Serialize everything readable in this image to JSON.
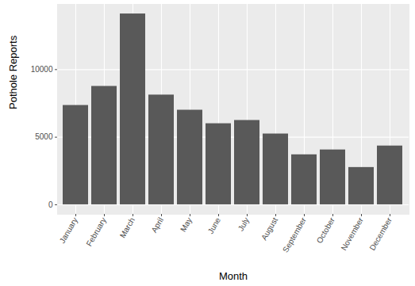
{
  "chart_data": {
    "type": "bar",
    "x_label": "Month",
    "y_label": "Pothole Reports",
    "categories": [
      "January",
      "February",
      "March",
      "April",
      "May",
      "June",
      "July",
      "August",
      "September",
      "October",
      "November",
      "December"
    ],
    "values": [
      7350,
      8760,
      14120,
      8120,
      7000,
      6000,
      6240,
      5240,
      3700,
      4060,
      2760,
      4350
    ],
    "color": "#595959",
    "ylim": [
      -706,
      14826
    ],
    "yticks": [
      0,
      5000,
      10000
    ],
    "grid": true
  }
}
